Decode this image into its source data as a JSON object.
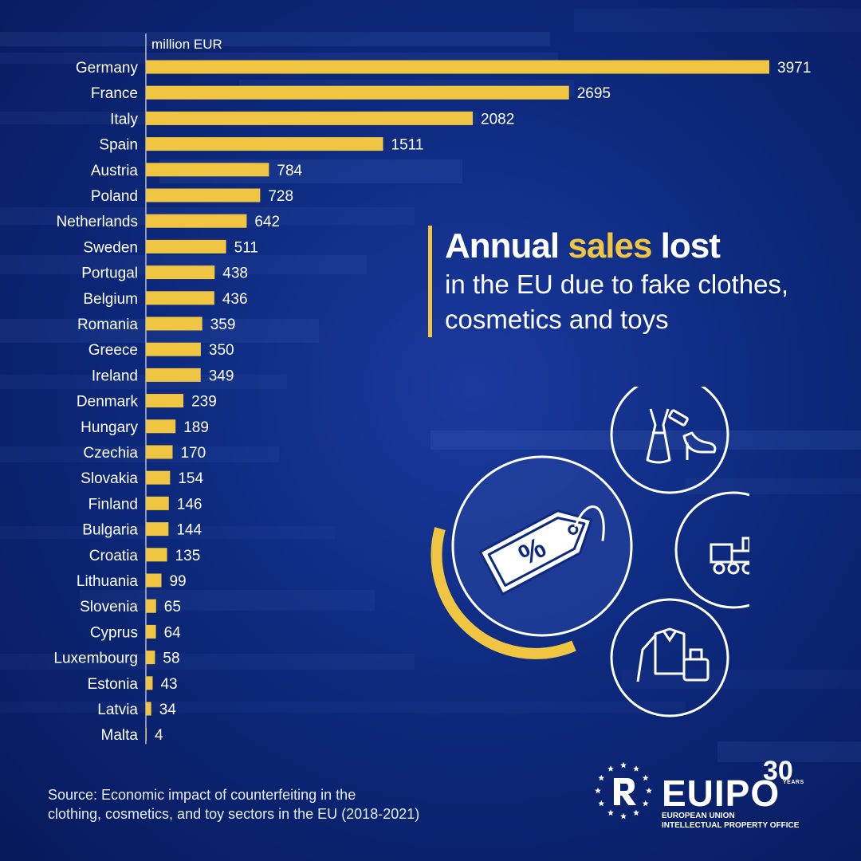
{
  "chart_data": {
    "type": "bar",
    "orientation": "horizontal",
    "unit": "million EUR",
    "categories": [
      "Germany",
      "France",
      "Italy",
      "Spain",
      "Austria",
      "Poland",
      "Netherlands",
      "Sweden",
      "Portugal",
      "Belgium",
      "Romania",
      "Greece",
      "Ireland",
      "Denmark",
      "Hungary",
      "Czechia",
      "Slovakia",
      "Finland",
      "Bulgaria",
      "Croatia",
      "Lithuania",
      "Slovenia",
      "Cyprus",
      "Luxembourg",
      "Estonia",
      "Latvia",
      "Malta"
    ],
    "values": [
      3971,
      2695,
      2082,
      1511,
      784,
      728,
      642,
      511,
      438,
      436,
      359,
      350,
      349,
      239,
      189,
      170,
      154,
      146,
      144,
      135,
      99,
      65,
      64,
      58,
      43,
      34,
      4
    ],
    "bar_color": "#f0c542",
    "grid": false
  },
  "headline": {
    "part1": "Annual ",
    "accent": "sales",
    "part2": " lost",
    "line2": "in the EU due to fake clothes,",
    "line3": "cosmetics and toys"
  },
  "icons": {
    "main": "price-tag-percent-icon",
    "circle1": "dress-lipstick-shoe-icon",
    "circle2": "toy-train-balloon-icon",
    "circle3": "shirt-perfume-icon",
    "tag_symbol": "%"
  },
  "source": {
    "line1": "Source: Economic impact of counterfeiting in the",
    "line2": "clothing, cosmetics, and toy sectors in the EU (2018-2021)"
  },
  "logo": {
    "wordmark": "EUIPO",
    "anniversary": "30",
    "years": "YEARS",
    "line1": "EUROPEAN UNION",
    "line2": "INTELLECTUAL PROPERTY OFFICE"
  },
  "colors": {
    "background": "#0d2a7e",
    "accent": "#f0c542",
    "text": "#ffffff"
  }
}
